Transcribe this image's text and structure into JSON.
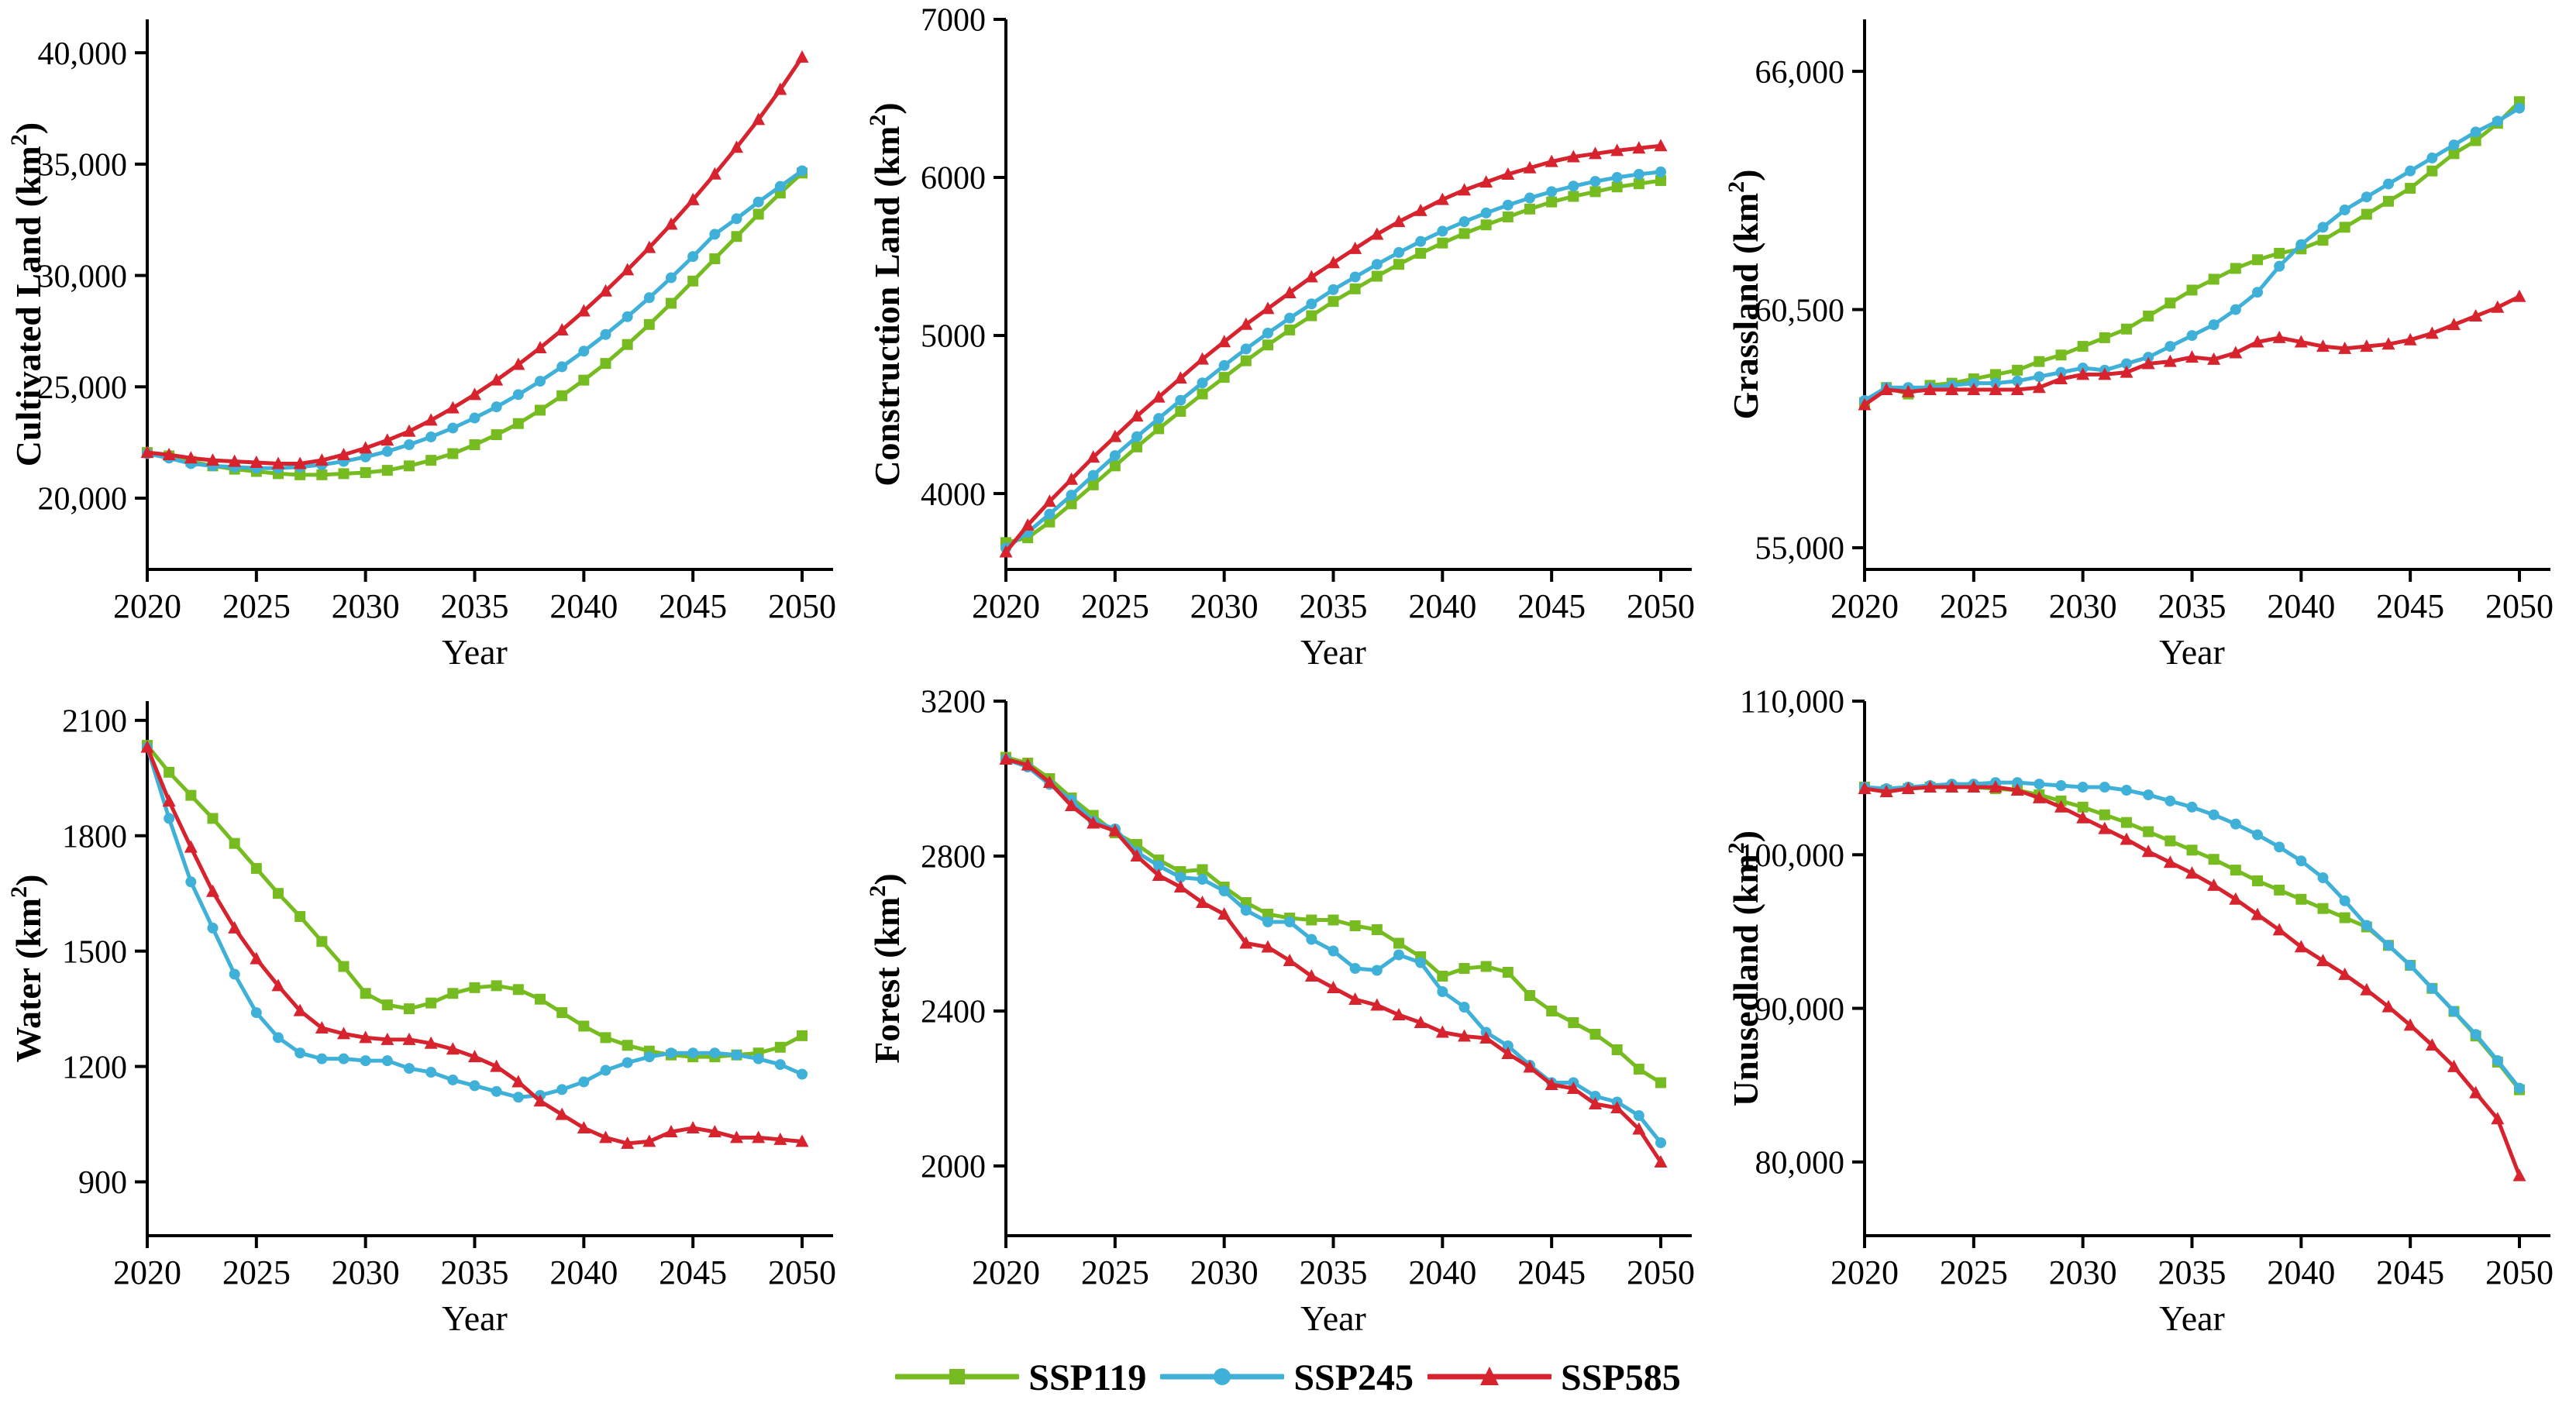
{
  "figure": {
    "xlabel": "Year"
  },
  "colors": {
    "ssp119": "#76BC21",
    "ssp245": "#3FB0D7",
    "ssp585": "#D7232E",
    "axis": "#000000",
    "background": "#FFFFFF"
  },
  "legend": {
    "items": [
      {
        "label": "SSP119",
        "marker": "square",
        "color": "#76BC21"
      },
      {
        "label": "SSP245",
        "marker": "circle",
        "color": "#3FB0D7"
      },
      {
        "label": "SSP585",
        "marker": "triangle",
        "color": "#D7232E"
      }
    ]
  },
  "chart_data": [
    {
      "type": "line",
      "title": "",
      "ylabel": "Cultivated Land (km²)",
      "xlabel": "Year",
      "x_start": 2020,
      "x_end": 2050,
      "x_step": 1,
      "x_ticks": [
        2020,
        2025,
        2030,
        2035,
        2040,
        2045,
        2050
      ],
      "ylim": [
        16800,
        41500
      ],
      "y_ticks": [
        20000,
        25000,
        30000,
        35000,
        40000
      ],
      "y_tick_format": "comma",
      "series": [
        {
          "name": "SSP119",
          "marker": "square",
          "color": "#76BC21",
          "values": [
            22050,
            21900,
            21650,
            21450,
            21300,
            21200,
            21100,
            21050,
            21050,
            21100,
            21150,
            21250,
            21450,
            21700,
            22000,
            22400,
            22850,
            23350,
            23950,
            24600,
            25300,
            26050,
            26900,
            27800,
            28750,
            29750,
            30750,
            31750,
            32750,
            33700,
            34600
          ]
        },
        {
          "name": "SSP245",
          "marker": "circle",
          "color": "#3FB0D7",
          "values": [
            22000,
            21800,
            21550,
            21450,
            21400,
            21350,
            21350,
            21400,
            21500,
            21650,
            21850,
            22100,
            22400,
            22750,
            23150,
            23600,
            24100,
            24650,
            25250,
            25900,
            26600,
            27350,
            28150,
            29000,
            29900,
            30850,
            31850,
            32550,
            33300,
            34000,
            34700
          ]
        },
        {
          "name": "SSP585",
          "marker": "triangle",
          "color": "#D7232E",
          "values": [
            22050,
            21950,
            21800,
            21700,
            21650,
            21600,
            21550,
            21550,
            21700,
            21950,
            22250,
            22600,
            23000,
            23500,
            24050,
            24650,
            25300,
            26000,
            26750,
            27550,
            28400,
            29300,
            30250,
            31250,
            32300,
            33400,
            34550,
            35750,
            37000,
            38350,
            39800
          ]
        }
      ]
    },
    {
      "type": "line",
      "title": "",
      "ylabel": "Construction Land (km²)",
      "xlabel": "Year",
      "x_start": 2020,
      "x_end": 2050,
      "x_step": 1,
      "x_ticks": [
        2020,
        2025,
        2030,
        2035,
        2040,
        2045,
        2050
      ],
      "ylim": [
        3520,
        7000
      ],
      "y_ticks": [
        4000,
        5000,
        6000,
        7000
      ],
      "y_tick_format": "plain",
      "series": [
        {
          "name": "SSP119",
          "marker": "square",
          "color": "#76BC21",
          "values": [
            3690,
            3720,
            3820,
            3935,
            4055,
            4175,
            4295,
            4410,
            4520,
            4630,
            4735,
            4840,
            4940,
            5035,
            5125,
            5215,
            5295,
            5375,
            5450,
            5520,
            5585,
            5645,
            5700,
            5750,
            5800,
            5845,
            5880,
            5910,
            5940,
            5960,
            5980
          ]
        },
        {
          "name": "SSP245",
          "marker": "circle",
          "color": "#3FB0D7",
          "values": [
            3655,
            3755,
            3870,
            3990,
            4115,
            4240,
            4360,
            4475,
            4590,
            4700,
            4810,
            4915,
            5015,
            5110,
            5200,
            5290,
            5370,
            5450,
            5525,
            5595,
            5660,
            5720,
            5775,
            5825,
            5870,
            5910,
            5945,
            5975,
            6000,
            6020,
            6035
          ]
        },
        {
          "name": "SSP585",
          "marker": "triangle",
          "color": "#D7232E",
          "values": [
            3630,
            3800,
            3950,
            4090,
            4230,
            4360,
            4490,
            4610,
            4730,
            4850,
            4960,
            5070,
            5170,
            5270,
            5370,
            5460,
            5550,
            5640,
            5720,
            5790,
            5860,
            5920,
            5970,
            6020,
            6060,
            6100,
            6130,
            6150,
            6170,
            6185,
            6200
          ]
        }
      ]
    },
    {
      "type": "line",
      "title": "",
      "ylabel": "Grassland (km²)",
      "xlabel": "Year",
      "x_start": 2020,
      "x_end": 2050,
      "x_step": 1,
      "x_ticks": [
        2020,
        2025,
        2030,
        2035,
        2040,
        2045,
        2050
      ],
      "ylim": [
        54500,
        67200
      ],
      "y_ticks": [
        55000,
        60500,
        66000
      ],
      "y_tick_format": "comma",
      "series": [
        {
          "name": "SSP119",
          "marker": "square",
          "color": "#76BC21",
          "values": [
            58350,
            58700,
            58550,
            58750,
            58800,
            58900,
            59000,
            59100,
            59300,
            59450,
            59650,
            59850,
            60050,
            60350,
            60650,
            60950,
            61200,
            61450,
            61650,
            61800,
            61900,
            62100,
            62400,
            62700,
            63000,
            63300,
            63700,
            64100,
            64400,
            64800,
            65300
          ]
        },
        {
          "name": "SSP245",
          "marker": "circle",
          "color": "#3FB0D7",
          "values": [
            58400,
            58700,
            58700,
            58700,
            58750,
            58800,
            58800,
            58850,
            58950,
            59050,
            59150,
            59100,
            59250,
            59400,
            59650,
            59900,
            60150,
            60500,
            60900,
            61500,
            62000,
            62400,
            62800,
            63100,
            63400,
            63700,
            64000,
            64300,
            64600,
            64850,
            65150
          ]
        },
        {
          "name": "SSP585",
          "marker": "triangle",
          "color": "#D7232E",
          "values": [
            58300,
            58650,
            58600,
            58650,
            58650,
            58650,
            58650,
            58650,
            58700,
            58900,
            59000,
            59000,
            59050,
            59250,
            59300,
            59400,
            59350,
            59500,
            59750,
            59850,
            59750,
            59650,
            59600,
            59650,
            59700,
            59800,
            59950,
            60150,
            60350,
            60550,
            60800
          ]
        }
      ]
    },
    {
      "type": "line",
      "title": "",
      "ylabel": "Water (km²)",
      "xlabel": "Year",
      "x_start": 2020,
      "x_end": 2050,
      "x_step": 1,
      "x_ticks": [
        2020,
        2025,
        2030,
        2035,
        2040,
        2045,
        2050
      ],
      "ylim": [
        760,
        2150
      ],
      "y_ticks": [
        900,
        1200,
        1500,
        1800,
        2100
      ],
      "y_tick_format": "plain",
      "series": [
        {
          "name": "SSP119",
          "marker": "square",
          "color": "#76BC21",
          "values": [
            2035,
            1965,
            1905,
            1845,
            1780,
            1715,
            1650,
            1590,
            1525,
            1460,
            1390,
            1360,
            1350,
            1365,
            1390,
            1405,
            1410,
            1400,
            1375,
            1340,
            1305,
            1275,
            1255,
            1240,
            1230,
            1225,
            1225,
            1230,
            1235,
            1250,
            1280
          ]
        },
        {
          "name": "SSP245",
          "marker": "circle",
          "color": "#3FB0D7",
          "values": [
            2030,
            1845,
            1680,
            1560,
            1440,
            1340,
            1275,
            1235,
            1220,
            1220,
            1215,
            1215,
            1195,
            1185,
            1165,
            1150,
            1135,
            1120,
            1125,
            1140,
            1160,
            1190,
            1210,
            1225,
            1235,
            1235,
            1235,
            1230,
            1220,
            1205,
            1180
          ]
        },
        {
          "name": "SSP585",
          "marker": "triangle",
          "color": "#D7232E",
          "values": [
            2030,
            1890,
            1770,
            1655,
            1560,
            1480,
            1410,
            1345,
            1300,
            1285,
            1275,
            1270,
            1270,
            1260,
            1245,
            1225,
            1200,
            1160,
            1110,
            1075,
            1040,
            1015,
            1000,
            1005,
            1030,
            1040,
            1030,
            1015,
            1015,
            1010,
            1005
          ]
        }
      ]
    },
    {
      "type": "line",
      "title": "",
      "ylabel": "Forest (km²)",
      "xlabel": "Year",
      "x_start": 2020,
      "x_end": 2050,
      "x_step": 1,
      "x_ticks": [
        2020,
        2025,
        2030,
        2035,
        2040,
        2045,
        2050
      ],
      "ylim": [
        1820,
        3200
      ],
      "y_ticks": [
        2000,
        2400,
        2800,
        3200
      ],
      "y_tick_format": "plain",
      "series": [
        {
          "name": "SSP119",
          "marker": "square",
          "color": "#76BC21",
          "values": [
            3055,
            3040,
            3000,
            2950,
            2905,
            2860,
            2830,
            2790,
            2760,
            2765,
            2720,
            2680,
            2650,
            2640,
            2635,
            2635,
            2620,
            2610,
            2575,
            2540,
            2490,
            2510,
            2515,
            2500,
            2440,
            2400,
            2370,
            2340,
            2300,
            2250,
            2215
          ]
        },
        {
          "name": "SSP245",
          "marker": "circle",
          "color": "#3FB0D7",
          "values": [
            3050,
            3030,
            2985,
            2945,
            2890,
            2870,
            2810,
            2775,
            2745,
            2740,
            2710,
            2660,
            2630,
            2630,
            2585,
            2555,
            2510,
            2505,
            2545,
            2525,
            2450,
            2410,
            2345,
            2310,
            2260,
            2215,
            2215,
            2180,
            2165,
            2130,
            2060
          ]
        },
        {
          "name": "SSP585",
          "marker": "triangle",
          "color": "#D7232E",
          "values": [
            3050,
            3035,
            2990,
            2930,
            2885,
            2865,
            2800,
            2750,
            2720,
            2680,
            2650,
            2575,
            2565,
            2530,
            2490,
            2460,
            2430,
            2415,
            2390,
            2370,
            2345,
            2335,
            2330,
            2290,
            2255,
            2210,
            2200,
            2160,
            2150,
            2095,
            2010
          ]
        }
      ]
    },
    {
      "type": "line",
      "title": "",
      "ylabel": "Unusedland (km²)",
      "xlabel": "Year",
      "x_start": 2020,
      "x_end": 2050,
      "x_step": 1,
      "x_ticks": [
        2020,
        2025,
        2030,
        2035,
        2040,
        2045,
        2050
      ],
      "ylim": [
        75200,
        110000
      ],
      "y_ticks": [
        80000,
        90000,
        100000,
        110000
      ],
      "y_tick_format": "comma",
      "series": [
        {
          "name": "SSP119",
          "marker": "square",
          "color": "#76BC21",
          "values": [
            104400,
            104200,
            104300,
            104400,
            104400,
            104400,
            104300,
            104200,
            103900,
            103500,
            103100,
            102600,
            102100,
            101500,
            100900,
            100300,
            99700,
            99000,
            98300,
            97700,
            97100,
            96500,
            95900,
            95300,
            94100,
            92800,
            91300,
            89800,
            88200,
            86500,
            84700
          ]
        },
        {
          "name": "SSP245",
          "marker": "circle",
          "color": "#3FB0D7",
          "values": [
            104400,
            104300,
            104400,
            104500,
            104600,
            104600,
            104700,
            104700,
            104600,
            104500,
            104400,
            104400,
            104200,
            103900,
            103500,
            103100,
            102600,
            102000,
            101300,
            100500,
            99600,
            98500,
            97000,
            95400,
            94100,
            92800,
            91300,
            89800,
            88300,
            86600,
            84800
          ]
        },
        {
          "name": "SSP585",
          "marker": "triangle",
          "color": "#D7232E",
          "values": [
            104300,
            104100,
            104300,
            104400,
            104400,
            104400,
            104400,
            104200,
            103700,
            103100,
            102400,
            101700,
            101000,
            100200,
            99500,
            98800,
            98000,
            97100,
            96100,
            95100,
            94000,
            93100,
            92200,
            91200,
            90100,
            88900,
            87600,
            86200,
            84500,
            82800,
            79100
          ]
        }
      ]
    }
  ]
}
